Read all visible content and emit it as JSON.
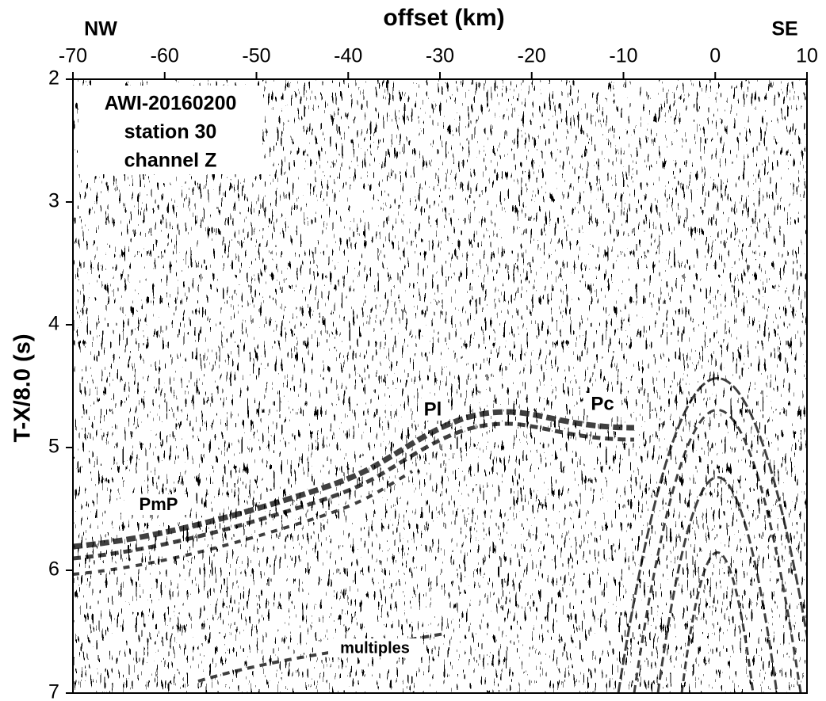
{
  "chart_data": {
    "type": "seismic-section",
    "xlabel": "offset (km)",
    "ylabel": "T-X/8.0 (s)",
    "side_labels": [
      "NW",
      "SE"
    ],
    "info_box": [
      "AWI-20160200",
      "station 30",
      "channel Z"
    ],
    "annotations": [
      "PmP",
      "Pl",
      "Pc",
      "multiples"
    ],
    "xlim": [
      -70,
      10
    ],
    "xticks": [
      -70,
      -60,
      -50,
      -40,
      -30,
      -20,
      -10,
      0,
      10
    ],
    "ylim": [
      2,
      7
    ],
    "yticks": [
      2,
      3,
      4,
      5,
      6,
      7
    ],
    "y_inverted": true
  }
}
